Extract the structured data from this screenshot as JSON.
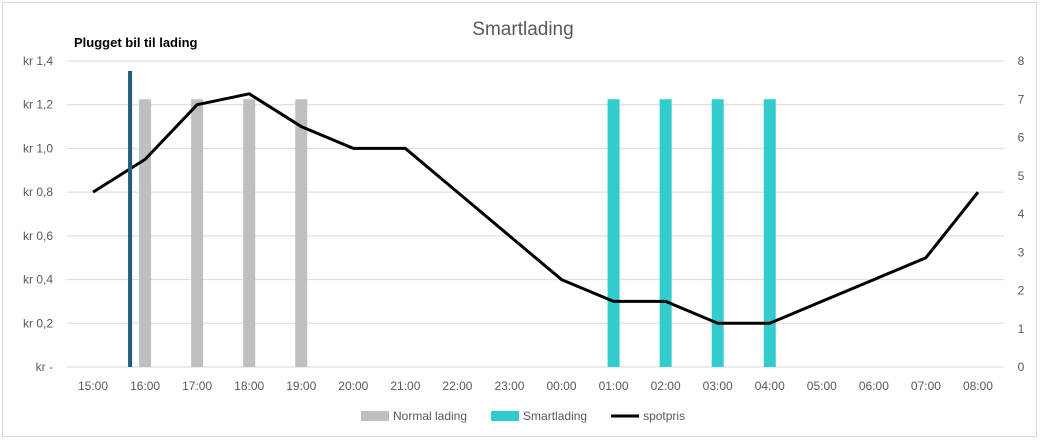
{
  "chart_data": {
    "type": "bar",
    "title": "Smartlading",
    "annotation": "Plugget bil til lading",
    "categories": [
      "15:00",
      "16:00",
      "17:00",
      "18:00",
      "19:00",
      "20:00",
      "21:00",
      "22:00",
      "23:00",
      "00:00",
      "01:00",
      "02:00",
      "03:00",
      "04:00",
      "05:00",
      "06:00",
      "07:00",
      "08:00"
    ],
    "series": [
      {
        "name": "Normal lading",
        "kind": "bar",
        "axis": "right",
        "color": "#bfbfbf",
        "values": [
          0,
          7,
          7,
          7,
          7,
          0,
          0,
          0,
          0,
          0,
          0,
          0,
          0,
          0,
          0,
          0,
          0,
          0
        ]
      },
      {
        "name": "Smartlading",
        "kind": "bar",
        "axis": "right",
        "color": "#33cccc",
        "values": [
          0,
          0,
          0,
          0,
          0,
          0,
          0,
          0,
          0,
          0,
          7,
          7,
          7,
          7,
          0,
          0,
          0,
          0
        ]
      },
      {
        "name": "spotpris",
        "kind": "line",
        "axis": "left",
        "color": "#000000",
        "values": [
          0.8,
          0.95,
          1.2,
          1.25,
          1.1,
          1.0,
          1.0,
          0.8,
          0.6,
          0.4,
          0.3,
          0.3,
          0.2,
          0.2,
          0.3,
          0.4,
          0.5,
          0.8
        ]
      }
    ],
    "plug_in": {
      "x": "15:45",
      "color": "#1f5f7a"
    },
    "left_axis": {
      "ylim": [
        0,
        1.4
      ],
      "ticks": [
        0,
        0.2,
        0.4,
        0.6,
        0.8,
        1.0,
        1.2,
        1.4
      ],
      "tick_labels": [
        "kr -",
        "kr 0,2",
        "kr 0,4",
        "kr 0,6",
        "kr 0,8",
        "kr 1,0",
        "kr 1,2",
        "kr 1,4"
      ]
    },
    "right_axis": {
      "ylim": [
        0,
        8
      ],
      "ticks": [
        0,
        1,
        2,
        3,
        4,
        5,
        6,
        7,
        8
      ],
      "tick_labels": [
        "0",
        "1",
        "2",
        "3",
        "4",
        "5",
        "6",
        "7",
        "8"
      ]
    },
    "grid": true,
    "legend_position": "bottom"
  }
}
